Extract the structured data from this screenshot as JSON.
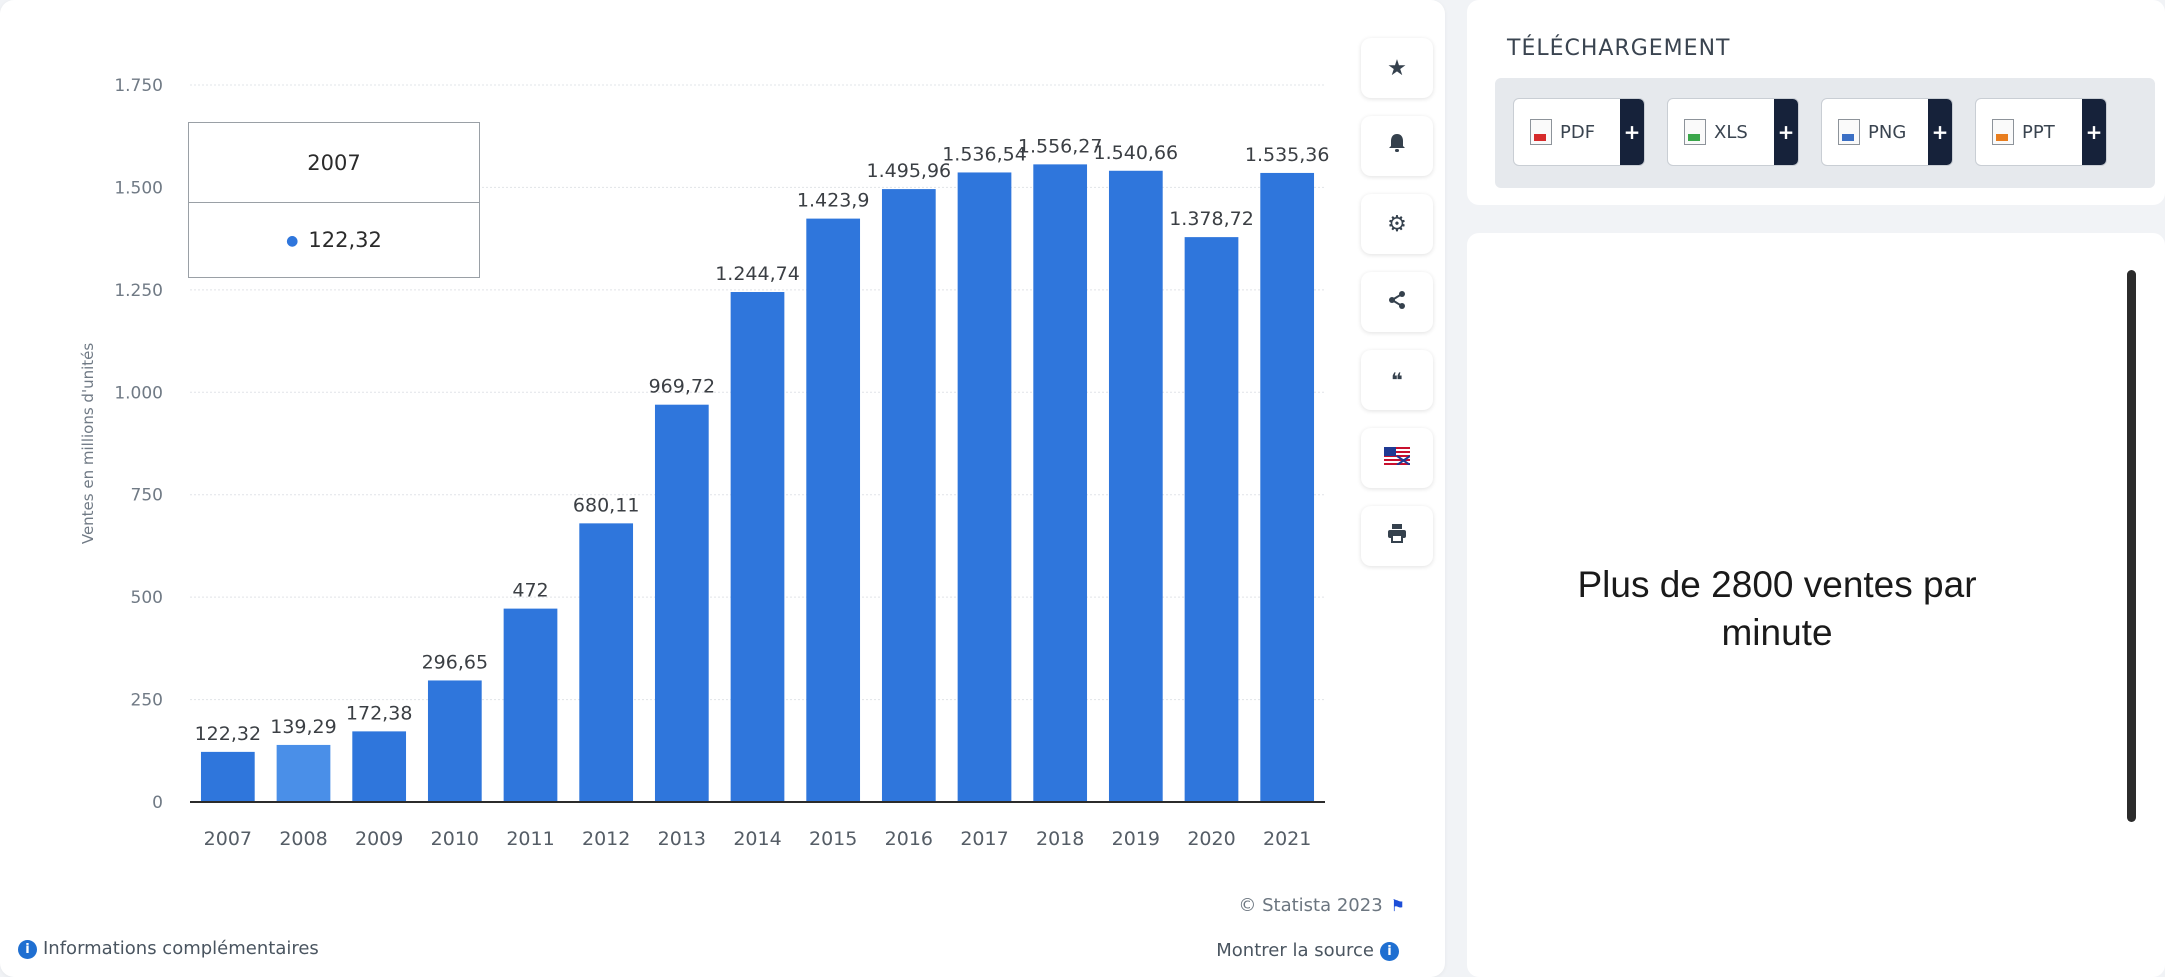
{
  "chart_data": {
    "type": "bar",
    "categories": [
      "2007",
      "2008",
      "2009",
      "2010",
      "2011",
      "2012",
      "2013",
      "2014",
      "2015",
      "2016",
      "2017",
      "2018",
      "2019",
      "2020",
      "2021"
    ],
    "values": [
      122.32,
      139.29,
      172.38,
      296.65,
      472,
      680.11,
      969.72,
      1244.74,
      1423.9,
      1495.96,
      1536.54,
      1556.27,
      1540.66,
      1378.72,
      1535.36
    ],
    "value_labels": [
      "122,32",
      "139,29",
      "172,38",
      "296,65",
      "472",
      "680,11",
      "969,72",
      "1.244,74",
      "1.423,9",
      "1.495,96",
      "1.536,54",
      "1.556,27",
      "1.540,66",
      "1.378,72",
      "1.535,36"
    ],
    "ylabel": "Ventes en millions d'unités",
    "xlabel": "",
    "ylim": [
      0,
      1750
    ],
    "yticks": [
      0,
      250,
      500,
      750,
      1000,
      1250,
      1500,
      1750
    ],
    "ytick_labels": [
      "0",
      "250",
      "500",
      "750",
      "1.000",
      "1.250",
      "1.500",
      "1.750"
    ],
    "grid": true,
    "bar_color": "#2f76dc",
    "highlight_color": "#4a8fe8",
    "highlight_index": 1,
    "tooltip": {
      "title": "2007",
      "value": "122,32"
    }
  },
  "toolbar": {
    "icons": [
      "star-icon",
      "bell-icon",
      "gear-icon",
      "share-icon",
      "quote-icon",
      "flag-icon",
      "print-icon"
    ],
    "glyphs": [
      "★",
      "🔔",
      "⚙",
      "<",
      "❝",
      "▦",
      "⎙"
    ]
  },
  "footer": {
    "credit": "© Statista 2023",
    "source": "Montrer la source",
    "more_info": "Informations complémentaires"
  },
  "download": {
    "title": "TÉLÉCHARGEMENT",
    "buttons": [
      {
        "label": "PDF",
        "color": "#d62b2b"
      },
      {
        "label": "XLS",
        "color": "#3aa64a"
      },
      {
        "label": "PNG",
        "color": "#3b6fc4"
      },
      {
        "label": "PPT",
        "color": "#e87d1e"
      }
    ],
    "plus": "+"
  },
  "note": {
    "text": "Plus de 2800 ventes par minute"
  }
}
